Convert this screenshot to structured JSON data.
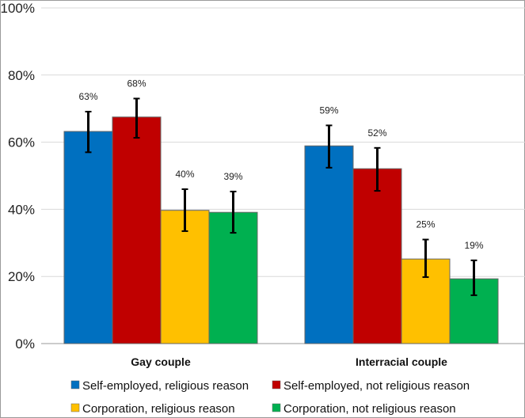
{
  "chart_data": {
    "type": "bar",
    "title": "",
    "xlabel": "",
    "ylabel": "",
    "ylim": [
      0,
      100
    ],
    "yticks": [
      "0%",
      "20%",
      "40%",
      "60%",
      "80%",
      "100%"
    ],
    "ytick_values": [
      0,
      20,
      40,
      60,
      80,
      100
    ],
    "grid": true,
    "legend_position": "bottom",
    "categories": [
      "Gay couple",
      "Interracial couple"
    ],
    "series": [
      {
        "name": "Self-employed, religious reason",
        "color": "#0070C0",
        "values": [
          63.2,
          58.9
        ],
        "labels": [
          "63%",
          "59%"
        ],
        "error_low": [
          57,
          52.4
        ],
        "error_high": [
          69.1,
          65
        ]
      },
      {
        "name": "Self-employed, not religious reason",
        "color": "#C00000",
        "values": [
          67.5,
          52.1
        ],
        "labels": [
          "68%",
          "52%"
        ],
        "error_low": [
          61.3,
          45.5
        ],
        "error_high": [
          73,
          58.3
        ]
      },
      {
        "name": "Corporation, religious reason",
        "color": "#FFC000",
        "values": [
          39.7,
          25.2
        ],
        "labels": [
          "40%",
          "25%"
        ],
        "error_low": [
          33.5,
          19.8
        ],
        "error_high": [
          46,
          31
        ]
      },
      {
        "name": "Corporation, not religious reason",
        "color": "#00B050",
        "values": [
          39.1,
          19.3
        ],
        "labels": [
          "39%",
          "19%"
        ],
        "error_low": [
          33,
          14.4
        ],
        "error_high": [
          45.3,
          24.8
        ]
      }
    ]
  }
}
